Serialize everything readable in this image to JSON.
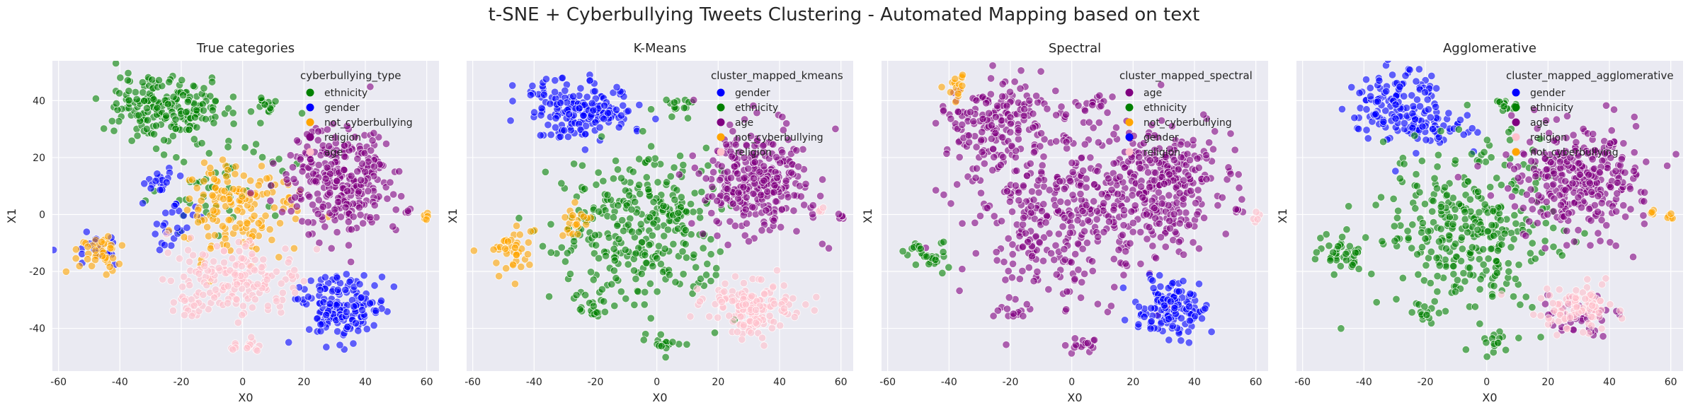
{
  "figure": {
    "suptitle": "t-SNE + Cyberbullying Tweets Clustering - Automated Mapping based on text"
  },
  "colors": {
    "axes_background": "#eaeaf2",
    "grid": "#ffffff",
    "blue": "#0000ff",
    "green": "#008000",
    "orange": "#ffa500",
    "purple": "#800080",
    "pink": "#ffc0cb"
  },
  "chart_data": [
    {
      "type": "scatter",
      "title": "True categories",
      "xlabel": "X0",
      "ylabel": "X1",
      "xlim": [
        -62,
        64
      ],
      "ylim": [
        -55,
        54
      ],
      "xticks": [
        -60,
        -40,
        -20,
        0,
        20,
        40,
        60
      ],
      "yticks": [
        -40,
        -20,
        0,
        20,
        40
      ],
      "grid": true,
      "legend": {
        "title": "cyberbullying_type",
        "position": "top-right",
        "entries": [
          {
            "label": "ethnicity",
            "color": "#008000"
          },
          {
            "label": "gender",
            "color": "#0000ff"
          },
          {
            "label": "not_cyberbullying",
            "color": "#ffa500"
          },
          {
            "label": "religion",
            "color": "#800080"
          },
          {
            "label": "age",
            "color": "#ffc0cb"
          }
        ]
      },
      "clusters": [
        {
          "category": "ethnicity",
          "x": -30,
          "y": 38,
          "spread_x": 7,
          "spread_y": 6,
          "n": 120
        },
        {
          "category": "ethnicity",
          "x": -18,
          "y": 36,
          "spread_x": 6,
          "spread_y": 5,
          "n": 80
        },
        {
          "category": "ethnicity",
          "x": 7,
          "y": 38,
          "spread_x": 3,
          "spread_y": 2,
          "n": 15
        },
        {
          "category": "ethnicity",
          "x": -5,
          "y": 10,
          "spread_x": 14,
          "spread_y": 12,
          "n": 60
        },
        {
          "category": "gender",
          "x": 32,
          "y": -33,
          "spread_x": 7,
          "spread_y": 5,
          "n": 160
        },
        {
          "category": "gender",
          "x": -27,
          "y": 12,
          "spread_x": 3,
          "spread_y": 2,
          "n": 20
        },
        {
          "category": "gender",
          "x": -23,
          "y": -3,
          "spread_x": 4,
          "spread_y": 4,
          "n": 25
        },
        {
          "category": "gender",
          "x": -48,
          "y": -13,
          "spread_x": 4,
          "spread_y": 3,
          "n": 20
        },
        {
          "category": "not_cyberbullying",
          "x": -2,
          "y": 2,
          "spread_x": 9,
          "spread_y": 9,
          "n": 150
        },
        {
          "category": "not_cyberbullying",
          "x": -47,
          "y": -13,
          "spread_x": 4,
          "spread_y": 4,
          "n": 40
        },
        {
          "category": "not_cyberbullying",
          "x": 60,
          "y": -1,
          "spread_x": 0.6,
          "spread_y": 0.8,
          "n": 5
        },
        {
          "category": "religion",
          "x": 32,
          "y": 12,
          "spread_x": 9,
          "spread_y": 9,
          "n": 300
        },
        {
          "category": "religion",
          "x": 54,
          "y": 1,
          "spread_x": 0.6,
          "spread_y": 0.6,
          "n": 4
        },
        {
          "category": "age",
          "x": 0,
          "y": -22,
          "spread_x": 10,
          "spread_y": 6,
          "n": 170
        },
        {
          "category": "age",
          "x": -17,
          "y": -33,
          "spread_x": 3,
          "spread_y": 2,
          "n": 15
        },
        {
          "category": "age",
          "x": 2,
          "y": -46,
          "spread_x": 3,
          "spread_y": 2,
          "n": 15
        }
      ]
    },
    {
      "type": "scatter",
      "title": "K-Means",
      "xlabel": "X0",
      "ylabel": "X1",
      "xlim": [
        -62,
        64
      ],
      "ylim": [
        -55,
        54
      ],
      "xticks": [
        -60,
        -40,
        -20,
        0,
        20,
        40,
        60
      ],
      "yticks": [
        -40,
        -20,
        0,
        20,
        40
      ],
      "grid": true,
      "legend": {
        "title": "cluster_mapped_kmeans",
        "position": "top-right",
        "entries": [
          {
            "label": "gender",
            "color": "#0000ff"
          },
          {
            "label": "ethnicity",
            "color": "#008000"
          },
          {
            "label": "age",
            "color": "#800080"
          },
          {
            "label": "not_cyberbullying",
            "color": "#ffa500"
          },
          {
            "label": "religion",
            "color": "#ffc0cb"
          }
        ]
      },
      "clusters": [
        {
          "category": "gender",
          "x": -30,
          "y": 38,
          "spread_x": 7,
          "spread_y": 6,
          "n": 120
        },
        {
          "category": "gender",
          "x": -18,
          "y": 36,
          "spread_x": 6,
          "spread_y": 5,
          "n": 80
        },
        {
          "category": "ethnicity",
          "x": 7,
          "y": 38,
          "spread_x": 3,
          "spread_y": 2,
          "n": 15
        },
        {
          "category": "ethnicity",
          "x": -5,
          "y": -5,
          "spread_x": 13,
          "spread_y": 14,
          "n": 330
        },
        {
          "category": "ethnicity",
          "x": -20,
          "y": -33,
          "spread_x": 3,
          "spread_y": 2,
          "n": 15
        },
        {
          "category": "ethnicity",
          "x": 2,
          "y": -46,
          "spread_x": 3,
          "spread_y": 2,
          "n": 15
        },
        {
          "category": "age",
          "x": 32,
          "y": 12,
          "spread_x": 9,
          "spread_y": 9,
          "n": 300
        },
        {
          "category": "age",
          "x": 60,
          "y": -1,
          "spread_x": 0.6,
          "spread_y": 0.8,
          "n": 5
        },
        {
          "category": "not_cyberbullying",
          "x": -47,
          "y": -13,
          "spread_x": 4,
          "spread_y": 4,
          "n": 40
        },
        {
          "category": "not_cyberbullying",
          "x": -27,
          "y": -3,
          "spread_x": 3,
          "spread_y": 3,
          "n": 20
        },
        {
          "category": "religion",
          "x": 30,
          "y": -33,
          "spread_x": 7,
          "spread_y": 5,
          "n": 150
        },
        {
          "category": "religion",
          "x": 54,
          "y": 1,
          "spread_x": 0.6,
          "spread_y": 0.6,
          "n": 4
        }
      ]
    },
    {
      "type": "scatter",
      "title": "Spectral",
      "xlabel": "X0",
      "ylabel": "X1",
      "xlim": [
        -62,
        64
      ],
      "ylim": [
        -55,
        54
      ],
      "xticks": [
        -60,
        -40,
        -20,
        0,
        20,
        40,
        60
      ],
      "yticks": [
        -40,
        -20,
        0,
        20,
        40
      ],
      "grid": true,
      "legend": {
        "title": "cluster_mapped_spectral",
        "position": "top-right",
        "entries": [
          {
            "label": "age",
            "color": "#800080"
          },
          {
            "label": "ethnicity",
            "color": "#008000"
          },
          {
            "label": "not_cyberbullying",
            "color": "#ffa500"
          },
          {
            "label": "gender",
            "color": "#0000ff"
          },
          {
            "label": "religion",
            "color": "#ffc0cb"
          }
        ]
      },
      "clusters": [
        {
          "category": "age",
          "x": -25,
          "y": 32,
          "spread_x": 9,
          "spread_y": 8,
          "n": 170
        },
        {
          "category": "age",
          "x": 7,
          "y": 38,
          "spread_x": 3,
          "spread_y": 2,
          "n": 15
        },
        {
          "category": "age",
          "x": 0,
          "y": 0,
          "spread_x": 16,
          "spread_y": 15,
          "n": 420
        },
        {
          "category": "age",
          "x": 32,
          "y": 12,
          "spread_x": 9,
          "spread_y": 9,
          "n": 250
        },
        {
          "category": "age",
          "x": 54,
          "y": 1,
          "spread_x": 0.6,
          "spread_y": 0.6,
          "n": 4
        },
        {
          "category": "age",
          "x": 2,
          "y": -46,
          "spread_x": 3,
          "spread_y": 2,
          "n": 15
        },
        {
          "category": "age",
          "x": -20,
          "y": -33,
          "spread_x": 3,
          "spread_y": 2,
          "n": 15
        },
        {
          "category": "ethnicity",
          "x": -48,
          "y": -14,
          "spread_x": 4,
          "spread_y": 3,
          "n": 30
        },
        {
          "category": "not_cyberbullying",
          "x": -37,
          "y": 45,
          "spread_x": 2,
          "spread_y": 3,
          "n": 15
        },
        {
          "category": "gender",
          "x": 32,
          "y": -33,
          "spread_x": 6,
          "spread_y": 5,
          "n": 130
        },
        {
          "category": "religion",
          "x": 60,
          "y": -1,
          "spread_x": 0.6,
          "spread_y": 0.8,
          "n": 5
        }
      ]
    },
    {
      "type": "scatter",
      "title": "Agglomerative",
      "xlabel": "X0",
      "ylabel": "X1",
      "xlim": [
        -62,
        64
      ],
      "ylim": [
        -55,
        54
      ],
      "xticks": [
        -60,
        -40,
        -20,
        0,
        20,
        40,
        60
      ],
      "yticks": [
        -40,
        -20,
        0,
        20,
        40
      ],
      "grid": true,
      "legend": {
        "title": "cluster_mapped_agglomerative",
        "position": "top-right",
        "entries": [
          {
            "label": "gender",
            "color": "#0000ff"
          },
          {
            "label": "ethnicity",
            "color": "#008000"
          },
          {
            "label": "age",
            "color": "#800080"
          },
          {
            "label": "religion",
            "color": "#ffc0cb"
          },
          {
            "label": "not_cyberbullying",
            "color": "#ffa500"
          }
        ]
      },
      "clusters": [
        {
          "category": "gender",
          "x": -30,
          "y": 38,
          "spread_x": 7,
          "spread_y": 6,
          "n": 120
        },
        {
          "category": "gender",
          "x": -18,
          "y": 32,
          "spread_x": 6,
          "spread_y": 5,
          "n": 60
        },
        {
          "category": "ethnicity",
          "x": 7,
          "y": 38,
          "spread_x": 3,
          "spread_y": 2,
          "n": 15
        },
        {
          "category": "ethnicity",
          "x": -5,
          "y": -5,
          "spread_x": 14,
          "spread_y": 14,
          "n": 330
        },
        {
          "category": "ethnicity",
          "x": -48,
          "y": -14,
          "spread_x": 4,
          "spread_y": 3,
          "n": 40
        },
        {
          "category": "ethnicity",
          "x": 2,
          "y": -46,
          "spread_x": 3,
          "spread_y": 2,
          "n": 15
        },
        {
          "category": "ethnicity",
          "x": -20,
          "y": -33,
          "spread_x": 3,
          "spread_y": 2,
          "n": 15
        },
        {
          "category": "age",
          "x": 30,
          "y": 12,
          "spread_x": 10,
          "spread_y": 10,
          "n": 320
        },
        {
          "category": "age",
          "x": 30,
          "y": -35,
          "spread_x": 6,
          "spread_y": 4,
          "n": 40
        },
        {
          "category": "religion",
          "x": 30,
          "y": -33,
          "spread_x": 6,
          "spread_y": 4,
          "n": 90
        },
        {
          "category": "not_cyberbullying",
          "x": 54,
          "y": 1,
          "spread_x": 0.6,
          "spread_y": 0.6,
          "n": 4
        },
        {
          "category": "not_cyberbullying",
          "x": 60,
          "y": -1,
          "spread_x": 0.6,
          "spread_y": 0.8,
          "n": 5
        }
      ]
    }
  ]
}
